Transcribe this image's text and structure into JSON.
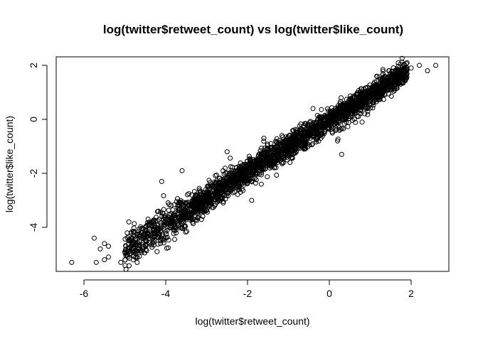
{
  "chart_data": {
    "type": "scatter",
    "title": "log(twitter$retweet_count) vs log(twitter$like_count)",
    "xlabel": "log(twitter$retweet_count)",
    "ylabel": "log(twitter$like_count)",
    "xlim": [
      -6.6,
      2.9
    ],
    "ylim": [
      -5.5,
      2.3
    ],
    "x_ticks": [
      -6,
      -4,
      -2,
      0,
      2
    ],
    "y_ticks": [
      -4,
      -2,
      0,
      2
    ],
    "x_tick_labels": [
      "-6",
      "-4",
      "-2",
      "0",
      "2"
    ],
    "y_tick_labels": [
      "-4",
      "-2",
      "0",
      "2"
    ],
    "marker": "open-circle",
    "grid": false,
    "legend": "none",
    "trend": {
      "slope": 0.96,
      "intercept": -0.05,
      "x_range": [
        -5.0,
        1.9
      ]
    },
    "outliers": [
      {
        "x": -6.3,
        "y": -5.3
      },
      {
        "x": -5.7,
        "y": -5.3
      },
      {
        "x": -5.6,
        "y": -4.8
      },
      {
        "x": -5.5,
        "y": -4.6
      },
      {
        "x": -5.4,
        "y": -4.7
      },
      {
        "x": -5.5,
        "y": -5.2
      },
      {
        "x": -5.4,
        "y": -5.1
      },
      {
        "x": -5.75,
        "y": -4.4
      },
      {
        "x": -5.1,
        "y": -5.3
      },
      {
        "x": -5.0,
        "y": -4.9
      },
      {
        "x": -4.9,
        "y": -3.8
      },
      {
        "x": -4.7,
        "y": -5.3
      },
      {
        "x": -4.1,
        "y": -2.3
      },
      {
        "x": -3.6,
        "y": -1.9
      },
      {
        "x": -2.5,
        "y": -1.2
      },
      {
        "x": -1.6,
        "y": -0.7
      },
      {
        "x": -1.9,
        "y": -3.0
      },
      {
        "x": -0.4,
        "y": 0.4
      },
      {
        "x": 0.3,
        "y": -1.3
      },
      {
        "x": 0.2,
        "y": -0.8
      },
      {
        "x": 0.8,
        "y": -0.1
      },
      {
        "x": 1.9,
        "y": 2.1
      },
      {
        "x": 2.0,
        "y": 1.9
      },
      {
        "x": 2.2,
        "y": 2.0
      },
      {
        "x": 2.6,
        "y": 2.0
      },
      {
        "x": 2.4,
        "y": 1.8
      },
      {
        "x": 1.8,
        "y": 1.6
      }
    ]
  }
}
